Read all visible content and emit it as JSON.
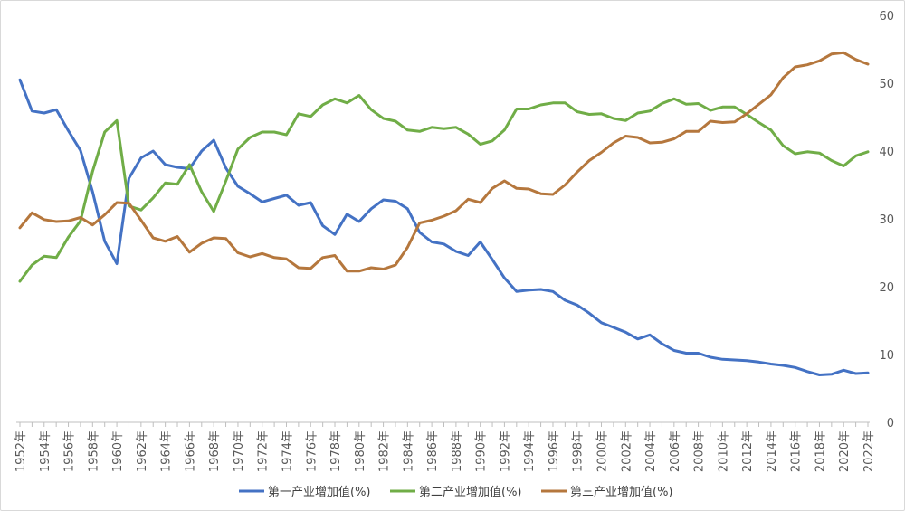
{
  "chart_data": {
    "type": "line",
    "title": "",
    "xlabel": "",
    "ylabel": "",
    "ylim": [
      0,
      60
    ],
    "yticks": [
      0,
      10,
      20,
      30,
      40,
      50,
      60
    ],
    "y_axis_side": "right",
    "grid": false,
    "legend_position": "bottom",
    "x": [
      1952,
      1953,
      1954,
      1955,
      1956,
      1957,
      1958,
      1959,
      1960,
      1961,
      1962,
      1963,
      1964,
      1965,
      1966,
      1967,
      1968,
      1969,
      1970,
      1971,
      1972,
      1973,
      1974,
      1975,
      1976,
      1977,
      1978,
      1979,
      1980,
      1981,
      1982,
      1983,
      1984,
      1985,
      1986,
      1987,
      1988,
      1989,
      1990,
      1991,
      1992,
      1993,
      1994,
      1995,
      1996,
      1997,
      1998,
      1999,
      2000,
      2001,
      2002,
      2003,
      2004,
      2005,
      2006,
      2007,
      2008,
      2009,
      2010,
      2011,
      2012,
      2013,
      2014,
      2015,
      2016,
      2017,
      2018,
      2019,
      2020,
      2021,
      2022
    ],
    "x_tick_labels": [
      "1952年",
      "1954年",
      "1956年",
      "1958年",
      "1960年",
      "1962年",
      "1964年",
      "1966年",
      "1968年",
      "1970年",
      "1972年",
      "1974年",
      "1976年",
      "1978年",
      "1980年",
      "1982年",
      "1984年",
      "1986年",
      "1988年",
      "1990年",
      "1992年",
      "1994年",
      "1996年",
      "1998年",
      "2000年",
      "2002年",
      "2004年",
      "2006年",
      "2008年",
      "2010年",
      "2012年",
      "2014年",
      "2016年",
      "2018年",
      "2020年",
      "2022年"
    ],
    "series": [
      {
        "name": "第一产业增加值(%)",
        "color": "#4472c4",
        "values": [
          50.5,
          45.9,
          45.6,
          46.1,
          43.0,
          40.1,
          34.0,
          26.7,
          23.4,
          36.0,
          39.0,
          40.0,
          38.0,
          37.6,
          37.4,
          40.0,
          41.6,
          37.5,
          34.8,
          33.7,
          32.5,
          33.0,
          33.5,
          32.0,
          32.4,
          29.0,
          27.7,
          30.7,
          29.6,
          31.5,
          32.8,
          32.6,
          31.5,
          28.0,
          26.6,
          26.3,
          25.2,
          24.6,
          26.6,
          24.0,
          21.3,
          19.3,
          19.5,
          19.6,
          19.3,
          18.0,
          17.3,
          16.1,
          14.7,
          14.0,
          13.3,
          12.3,
          12.9,
          11.6,
          10.6,
          10.2,
          10.2,
          9.6,
          9.3,
          9.2,
          9.1,
          8.9,
          8.6,
          8.4,
          8.1,
          7.5,
          7.0,
          7.1,
          7.7,
          7.2,
          7.3
        ]
      },
      {
        "name": "第二产业增加值(%)",
        "color": "#70ad47",
        "values": [
          20.8,
          23.2,
          24.5,
          24.3,
          27.3,
          29.7,
          37.0,
          42.8,
          44.5,
          31.9,
          31.3,
          33.1,
          35.3,
          35.1,
          38.0,
          34.0,
          31.1,
          35.6,
          40.3,
          42.0,
          42.8,
          42.8,
          42.4,
          45.5,
          45.1,
          46.8,
          47.7,
          47.1,
          48.2,
          46.1,
          44.8,
          44.4,
          43.1,
          42.9,
          43.5,
          43.3,
          43.5,
          42.5,
          41.0,
          41.5,
          43.1,
          46.2,
          46.2,
          46.8,
          47.1,
          47.1,
          45.8,
          45.4,
          45.5,
          44.8,
          44.5,
          45.6,
          45.9,
          47.0,
          47.7,
          46.9,
          47.0,
          46.0,
          46.5,
          46.5,
          45.4,
          44.2,
          43.1,
          40.8,
          39.6,
          39.9,
          39.7,
          38.6,
          37.8,
          39.3,
          39.9
        ]
      },
      {
        "name": "第三产业增加值(%)",
        "color": "#b5773d",
        "values": [
          28.7,
          30.9,
          29.9,
          29.6,
          29.7,
          30.2,
          29.1,
          30.6,
          32.4,
          32.3,
          29.8,
          27.2,
          26.7,
          27.4,
          25.1,
          26.4,
          27.2,
          27.1,
          25.0,
          24.4,
          24.9,
          24.3,
          24.1,
          22.8,
          22.7,
          24.3,
          24.6,
          22.3,
          22.3,
          22.8,
          22.6,
          23.2,
          25.8,
          29.4,
          29.8,
          30.4,
          31.2,
          32.9,
          32.4,
          34.5,
          35.6,
          34.5,
          34.4,
          33.7,
          33.6,
          35.0,
          36.9,
          38.6,
          39.8,
          41.2,
          42.2,
          42.0,
          41.2,
          41.3,
          41.8,
          42.9,
          42.9,
          44.4,
          44.2,
          44.3,
          45.5,
          46.9,
          48.3,
          50.8,
          52.4,
          52.7,
          53.3,
          54.3,
          54.5,
          53.5,
          52.8
        ]
      }
    ]
  }
}
